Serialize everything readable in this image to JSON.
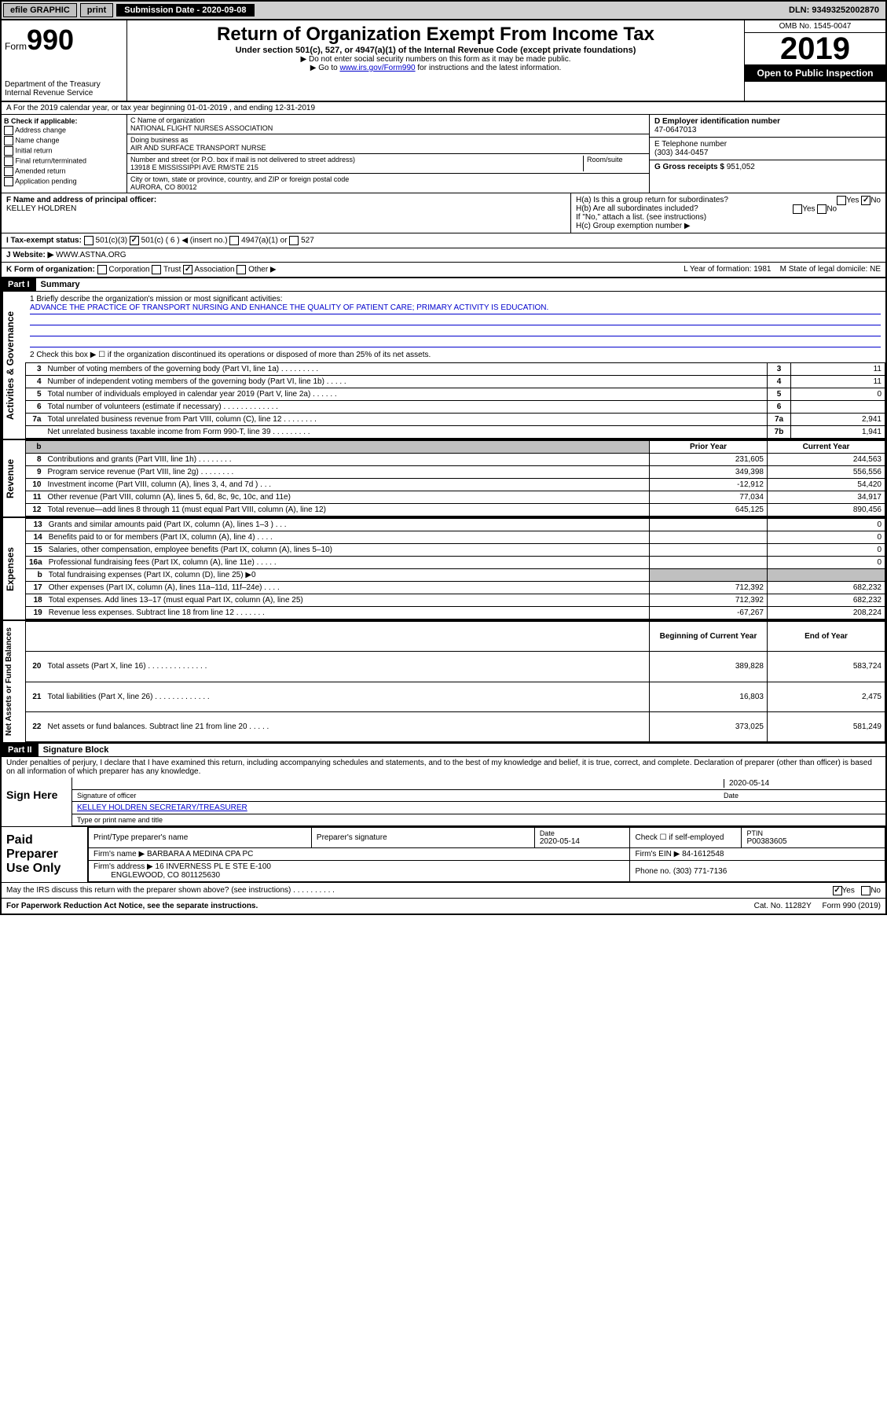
{
  "topbar": {
    "efile": "efile GRAPHIC",
    "print": "print",
    "submission_label": "Submission Date - 2020-09-08",
    "dln": "DLN: 93493252002870"
  },
  "header": {
    "form_word": "Form",
    "form_num": "990",
    "title": "Return of Organization Exempt From Income Tax",
    "subtitle": "Under section 501(c), 527, or 4947(a)(1) of the Internal Revenue Code (except private foundations)",
    "note1": "▶ Do not enter social security numbers on this form as it may be made public.",
    "note2_pre": "▶ Go to ",
    "note2_link": "www.irs.gov/Form990",
    "note2_post": " for instructions and the latest information.",
    "dept": "Department of the Treasury\nInternal Revenue Service",
    "omb": "OMB No. 1545-0047",
    "year": "2019",
    "open": "Open to Public Inspection"
  },
  "rowA": "A For the 2019 calendar year, or tax year beginning 01-01-2019    , and ending 12-31-2019",
  "colB": {
    "label": "B Check if applicable:",
    "opts": [
      "Address change",
      "Name change",
      "Initial return",
      "Final return/terminated",
      "Amended return",
      "Application pending"
    ]
  },
  "colC": {
    "name_label": "C Name of organization",
    "name": "NATIONAL FLIGHT NURSES ASSOCIATION",
    "dba_label": "Doing business as",
    "dba": "AIR AND SURFACE TRANSPORT NURSE",
    "street_label": "Number and street (or P.O. box if mail is not delivered to street address)",
    "room_label": "Room/suite",
    "street": "13918 E MISSISSIPPI AVE RM/STE 215",
    "city_label": "City or town, state or province, country, and ZIP or foreign postal code",
    "city": "AURORA, CO  80012"
  },
  "colD": {
    "ein_label": "D Employer identification number",
    "ein": "47-0647013",
    "phone_label": "E Telephone number",
    "phone": "(303) 344-0457",
    "gross_label": "G Gross receipts $",
    "gross": "951,052"
  },
  "rowF": {
    "label": "F  Name and address of principal officer:",
    "name": "KELLEY HOLDREN"
  },
  "rowH": {
    "ha": "H(a)  Is this a group return for subordinates?",
    "hb": "H(b)  Are all subordinates included?",
    "hb_note": "If \"No,\" attach a list. (see instructions)",
    "hc": "H(c)  Group exemption number ▶"
  },
  "rowI": {
    "label": "I  Tax-exempt status:",
    "opts": [
      "501(c)(3)",
      "501(c) ( 6 ) ◀ (insert no.)",
      "4947(a)(1) or",
      "527"
    ]
  },
  "rowJ": {
    "label": "J  Website: ▶",
    "value": "WWW.ASTNA.ORG"
  },
  "rowK": {
    "label": "K Form of organization:",
    "opts": [
      "Corporation",
      "Trust",
      "Association",
      "Other ▶"
    ],
    "year": "L Year of formation: 1981",
    "state": "M State of legal domicile: NE"
  },
  "part1": {
    "hdr": "Part I",
    "title": "Summary",
    "line1": "1  Briefly describe the organization's mission or most significant activities:",
    "mission": "ADVANCE THE PRACTICE OF TRANSPORT NURSING AND ENHANCE THE QUALITY OF PATIENT CARE; PRIMARY ACTIVITY IS EDUCATION.",
    "line2": "2   Check this box ▶ ☐ if the organization discontinued its operations or disposed of more than 25% of its net assets.",
    "gov_rows": [
      {
        "n": "3",
        "d": "Number of voting members of the governing body (Part VI, line 1a)  .   .   .   .   .   .   .   .   .",
        "rn": "3",
        "v": "11"
      },
      {
        "n": "4",
        "d": "Number of independent voting members of the governing body (Part VI, line 1b)  .   .   .   .   .",
        "rn": "4",
        "v": "11"
      },
      {
        "n": "5",
        "d": "Total number of individuals employed in calendar year 2019 (Part V, line 2a)  .   .   .   .   .   .",
        "rn": "5",
        "v": "0"
      },
      {
        "n": "6",
        "d": "Total number of volunteers (estimate if necessary)  .   .   .   .   .   .   .   .   .   .   .   .   .",
        "rn": "6",
        "v": ""
      },
      {
        "n": "7a",
        "d": "Total unrelated business revenue from Part VIII, column (C), line 12  .   .   .   .   .   .   .   .",
        "rn": "7a",
        "v": "2,941"
      },
      {
        "n": "",
        "d": "Net unrelated business taxable income from Form 990-T, line 39  .   .   .   .   .   .   .   .   .",
        "rn": "7b",
        "v": "1,941"
      }
    ],
    "col_prior": "Prior Year",
    "col_current": "Current Year",
    "rev_rows": [
      {
        "n": "8",
        "d": "Contributions and grants (Part VIII, line 1h)  .   .   .   .   .   .   .   .",
        "p": "231,605",
        "c": "244,563"
      },
      {
        "n": "9",
        "d": "Program service revenue (Part VIII, line 2g)  .   .   .   .   .   .   .   .",
        "p": "349,398",
        "c": "556,556"
      },
      {
        "n": "10",
        "d": "Investment income (Part VIII, column (A), lines 3, 4, and 7d )  .   .   .",
        "p": "-12,912",
        "c": "54,420"
      },
      {
        "n": "11",
        "d": "Other revenue (Part VIII, column (A), lines 5, 6d, 8c, 9c, 10c, and 11e)",
        "p": "77,034",
        "c": "34,917"
      },
      {
        "n": "12",
        "d": "Total revenue—add lines 8 through 11 (must equal Part VIII, column (A), line 12)",
        "p": "645,125",
        "c": "890,456"
      }
    ],
    "exp_rows": [
      {
        "n": "13",
        "d": "Grants and similar amounts paid (Part IX, column (A), lines 1–3 )  .   .   .",
        "p": "",
        "c": "0"
      },
      {
        "n": "14",
        "d": "Benefits paid to or for members (Part IX, column (A), line 4)  .   .   .   .",
        "p": "",
        "c": "0"
      },
      {
        "n": "15",
        "d": "Salaries, other compensation, employee benefits (Part IX, column (A), lines 5–10)",
        "p": "",
        "c": "0"
      },
      {
        "n": "16a",
        "d": "Professional fundraising fees (Part IX, column (A), line 11e)  .   .   .   .   .",
        "p": "",
        "c": "0"
      },
      {
        "n": "b",
        "d": "Total fundraising expenses (Part IX, column (D), line 25) ▶0",
        "p": "",
        "c": "",
        "shade": true
      },
      {
        "n": "17",
        "d": "Other expenses (Part IX, column (A), lines 11a–11d, 11f–24e)  .   .   .   .",
        "p": "712,392",
        "c": "682,232"
      },
      {
        "n": "18",
        "d": "Total expenses. Add lines 13–17 (must equal Part IX, column (A), line 25)",
        "p": "712,392",
        "c": "682,232"
      },
      {
        "n": "19",
        "d": "Revenue less expenses. Subtract line 18 from line 12  .   .   .   .   .   .   .",
        "p": "-67,267",
        "c": "208,224"
      }
    ],
    "col_begin": "Beginning of Current Year",
    "col_end": "End of Year",
    "net_rows": [
      {
        "n": "20",
        "d": "Total assets (Part X, line 16)  .   .   .   .   .   .   .   .   .   .   .   .   .   .",
        "p": "389,828",
        "c": "583,724"
      },
      {
        "n": "21",
        "d": "Total liabilities (Part X, line 26)  .   .   .   .   .   .   .   .   .   .   .   .   .",
        "p": "16,803",
        "c": "2,475"
      },
      {
        "n": "22",
        "d": "Net assets or fund balances. Subtract line 21 from line 20  .   .   .   .   .",
        "p": "373,025",
        "c": "581,249"
      }
    ]
  },
  "part2": {
    "hdr": "Part II",
    "title": "Signature Block",
    "perjury": "Under penalties of perjury, I declare that I have examined this return, including accompanying schedules and statements, and to the best of my knowledge and belief, it is true, correct, and complete. Declaration of preparer (other than officer) is based on all information of which preparer has any knowledge.",
    "sign_here": "Sign Here",
    "sig_officer": "Signature of officer",
    "sig_date": "2020-05-14",
    "date_label": "Date",
    "officer_name": "KELLEY HOLDREN  SECRETARY/TREASURER",
    "type_label": "Type or print name and title",
    "paid_label": "Paid Preparer Use Only",
    "prep_name_label": "Print/Type preparer's name",
    "prep_sig_label": "Preparer's signature",
    "prep_date": "2020-05-14",
    "check_if": "Check ☐ if self-employed",
    "ptin_label": "PTIN",
    "ptin": "P00383605",
    "firm_name_label": "Firm's name    ▶",
    "firm_name": "BARBARA A MEDINA CPA PC",
    "firm_ein_label": "Firm's EIN ▶",
    "firm_ein": "84-1612548",
    "firm_addr_label": "Firm's address ▶",
    "firm_addr": "16 INVERNESS PL E STE E-100",
    "firm_city": "ENGLEWOOD, CO  801125630",
    "firm_phone_label": "Phone no.",
    "firm_phone": "(303) 771-7136",
    "discuss": "May the IRS discuss this return with the preparer shown above? (see instructions)  .   .   .   .   .   .   .   .   .   .",
    "yes": "Yes",
    "no": "No"
  },
  "footer": {
    "paperwork": "For Paperwork Reduction Act Notice, see the separate instructions.",
    "cat": "Cat. No. 11282Y",
    "form": "Form 990 (2019)"
  }
}
